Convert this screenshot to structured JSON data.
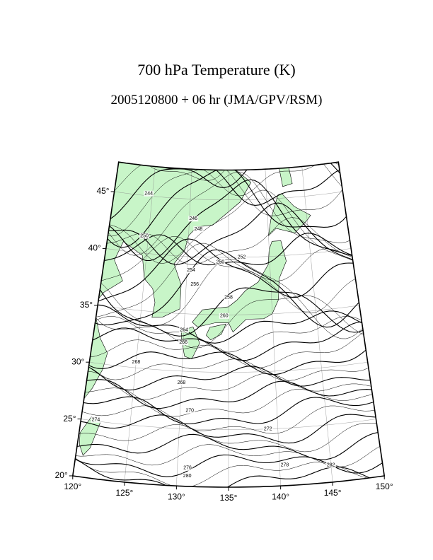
{
  "header": {
    "title": "700 hPa Temperature (K)",
    "subtitle": "2005120800 + 06 hr (JMA/GPV/RSM)"
  },
  "map": {
    "lat_ticks": [
      {
        "value": 20,
        "label": "20°"
      },
      {
        "value": 25,
        "label": "25°"
      },
      {
        "value": 30,
        "label": "30°"
      },
      {
        "value": 35,
        "label": "35°"
      },
      {
        "value": 40,
        "label": "40°"
      },
      {
        "value": 45,
        "label": "45°"
      }
    ],
    "lon_ticks": [
      {
        "value": 120,
        "label": "120°"
      },
      {
        "value": 125,
        "label": "125°"
      },
      {
        "value": 130,
        "label": "130°"
      },
      {
        "value": 135,
        "label": "135°"
      },
      {
        "value": 140,
        "label": "140°"
      },
      {
        "value": 145,
        "label": "145°"
      },
      {
        "value": 150,
        "label": "150°"
      }
    ],
    "land_color": "#c8f5c8",
    "contour_labels": [
      244,
      246,
      248,
      250,
      250,
      252,
      254,
      256,
      258,
      260,
      264,
      266,
      268,
      268,
      270,
      272,
      274,
      276,
      278,
      280,
      282
    ]
  }
}
